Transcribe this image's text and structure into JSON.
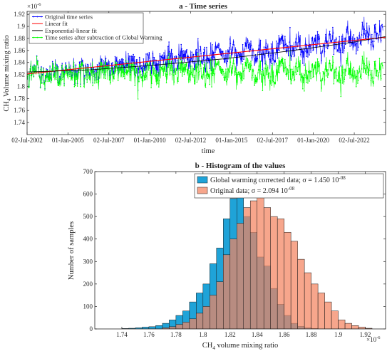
{
  "chart_data": [
    {
      "type": "line",
      "title": "a - Time series",
      "xlabel": "time",
      "ylabel": "CH4 Volume mixing ratio",
      "y_multiplier": "×10",
      "y_multiplier_exp": "-6",
      "ylim": [
        1.72,
        1.925
      ],
      "xlim": [
        "2002-07-02",
        "2024-06-01"
      ],
      "x_tick_labels": [
        "02-Jul-2002",
        "01-Jan-2005",
        "02-Jul-2007",
        "01-Jan-2010",
        "02-Jul-2012",
        "01-Jan-2015",
        "02-Jul-2017",
        "01-Jan-2020",
        "02-Jul-2022"
      ],
      "y_tick_labels": [
        "1.74",
        "1.76",
        "1.78",
        "1.8",
        "1.82",
        "1.84",
        "1.86",
        "1.88",
        "1.9",
        "1.92"
      ],
      "legend_position": "top-left",
      "series": [
        {
          "name": "Original time series",
          "color": "#0000ff",
          "style": "line-with-dots",
          "x": [
            "2002-07",
            "2003-07",
            "2004-07",
            "2005-07",
            "2006-07",
            "2007-07",
            "2008-07",
            "2009-07",
            "2010-07",
            "2011-07",
            "2012-07",
            "2013-07",
            "2014-07",
            "2015-07",
            "2016-07",
            "2017-07",
            "2018-07",
            "2019-07",
            "2020-07",
            "2021-07",
            "2022-07",
            "2023-07",
            "2024-04"
          ],
          "values": [
            1.822,
            1.824,
            1.825,
            1.826,
            1.827,
            1.829,
            1.834,
            1.838,
            1.841,
            1.843,
            1.846,
            1.849,
            1.853,
            1.855,
            1.857,
            1.859,
            1.862,
            1.866,
            1.869,
            1.873,
            1.877,
            1.882,
            1.886
          ]
        },
        {
          "name": "Linear fit",
          "color": "#ff0000",
          "style": "line",
          "x": [
            "2002-07-02",
            "2024-06-01"
          ],
          "values": [
            1.821,
            1.882
          ]
        },
        {
          "name": "Exponential-linear fit",
          "color": "#000000",
          "style": "line",
          "x": [
            "2002-07",
            "2006-07",
            "2010-07",
            "2014-07",
            "2018-07",
            "2022-07",
            "2024-06"
          ],
          "values": [
            1.824,
            1.828,
            1.836,
            1.846,
            1.859,
            1.874,
            1.883
          ]
        },
        {
          "name": "Time series after subtraction of Global Warming",
          "color": "#00ff00",
          "style": "line-with-dots",
          "x": [
            "2002-07",
            "2006-07",
            "2010-07",
            "2014-07",
            "2018-07",
            "2022-07",
            "2024-04"
          ],
          "values": [
            1.822,
            1.822,
            1.823,
            1.823,
            1.823,
            1.823,
            1.822
          ]
        }
      ]
    },
    {
      "type": "bar",
      "title": "b - Histogram of the values",
      "xlabel": "CH4 volume mixing ratio",
      "ylabel": "Number of samples",
      "x_multiplier": "×10",
      "x_multiplier_exp": "-6",
      "xlim": [
        1.72,
        1.935
      ],
      "ylim": [
        0,
        700
      ],
      "bin_width": 0.005,
      "x_tick_labels": [
        "1.74",
        "1.76",
        "1.78",
        "1.8",
        "1.82",
        "1.84",
        "1.86",
        "1.88",
        "1.9",
        "1.92"
      ],
      "y_tick_labels": [
        "0",
        "100",
        "200",
        "300",
        "400",
        "500",
        "600",
        "700"
      ],
      "legend_position": "top-right",
      "series": [
        {
          "name": "Global warming corrected data; σ = 1.450 10",
          "name_exp": "-08",
          "color": "#1fa3d8",
          "bin_starts": [
            1.74,
            1.745,
            1.75,
            1.755,
            1.76,
            1.765,
            1.77,
            1.775,
            1.78,
            1.785,
            1.79,
            1.795,
            1.8,
            1.805,
            1.81,
            1.815,
            1.82,
            1.825,
            1.83,
            1.835,
            1.84,
            1.845,
            1.85,
            1.855,
            1.86,
            1.865,
            1.87,
            1.875,
            1.88
          ],
          "values": [
            2,
            3,
            5,
            8,
            10,
            15,
            25,
            40,
            60,
            80,
            120,
            160,
            200,
            290,
            360,
            490,
            580,
            590,
            500,
            430,
            320,
            280,
            180,
            110,
            60,
            25,
            12,
            5,
            2
          ]
        },
        {
          "name": "Original data; σ = 2.094 10",
          "name_exp": "-08",
          "color": "#f4845f",
          "bin_starts": [
            1.77,
            1.775,
            1.78,
            1.785,
            1.79,
            1.795,
            1.8,
            1.805,
            1.81,
            1.815,
            1.82,
            1.825,
            1.83,
            1.835,
            1.84,
            1.845,
            1.85,
            1.855,
            1.86,
            1.865,
            1.87,
            1.875,
            1.88,
            1.885,
            1.89,
            1.895,
            1.9,
            1.905,
            1.91,
            1.915,
            1.92
          ],
          "values": [
            5,
            10,
            20,
            30,
            45,
            70,
            100,
            150,
            210,
            330,
            400,
            470,
            540,
            570,
            600,
            540,
            500,
            490,
            430,
            390,
            310,
            250,
            200,
            160,
            120,
            80,
            40,
            25,
            15,
            8,
            3
          ]
        }
      ]
    }
  ]
}
